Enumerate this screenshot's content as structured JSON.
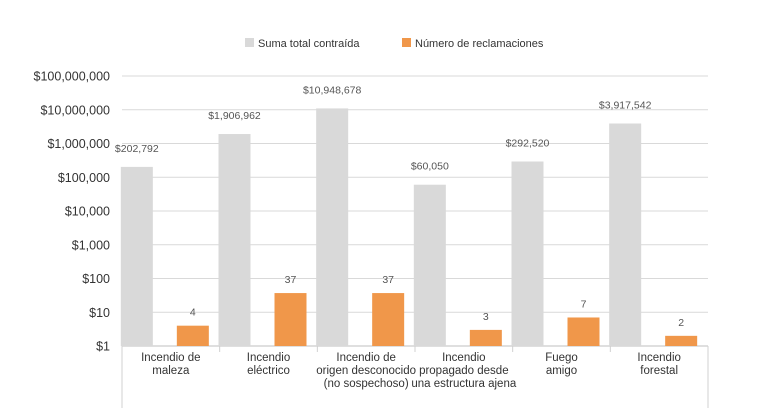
{
  "chart_data": {
    "type": "bar",
    "y_scale": "log",
    "ylim": [
      1,
      100000000
    ],
    "grid": true,
    "legend_position": "top-center",
    "categories": [
      [
        "Incendio de",
        "maleza"
      ],
      [
        "Incendio",
        "eléctrico"
      ],
      [
        "Incendio de",
        "origen desconocido",
        "(no sospechoso)"
      ],
      [
        "Incendio",
        "propagado desde",
        "una estructura ajena"
      ],
      [
        "Fuego",
        "amigo"
      ],
      [
        "Incendio",
        "forestal"
      ]
    ],
    "y_ticks": [
      1,
      10,
      100,
      1000,
      10000,
      100000,
      1000000,
      10000000,
      100000000
    ],
    "y_tick_labels": [
      "$1",
      "$10",
      "$100",
      "$1,000",
      "$10,000",
      "$100,000",
      "$1,000,000",
      "$10,000,000",
      "$100,000,000"
    ],
    "series": [
      {
        "name": "Suma total contraída",
        "color": "#d9d9d9",
        "values": [
          202792,
          1906962,
          10948678,
          60050,
          292520,
          3917542
        ],
        "labels": [
          "$202,792",
          "$1,906,962",
          "$10,948,678",
          "$60,050",
          "$292,520",
          "$3,917,542"
        ]
      },
      {
        "name": "Número de reclamaciones",
        "color": "#f0974a",
        "values": [
          4,
          37,
          37,
          3,
          7,
          2
        ],
        "labels": [
          "4",
          "37",
          "37",
          "3",
          "7",
          "2"
        ]
      }
    ]
  }
}
